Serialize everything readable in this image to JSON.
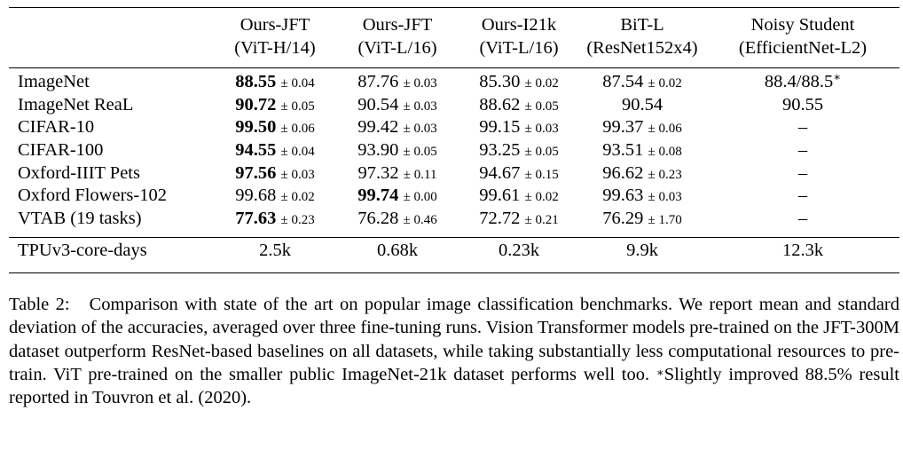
{
  "table": {
    "columns": [
      {
        "name": "Ours-JFT",
        "sub": "(ViT-H/14)"
      },
      {
        "name": "Ours-JFT",
        "sub": "(ViT-L/16)"
      },
      {
        "name": "Ours-I21k",
        "sub": "(ViT-L/16)"
      },
      {
        "name": "BiT-L",
        "sub": "(ResNet152x4)"
      },
      {
        "name": "Noisy Student",
        "sub": "(EfficientNet-L2)"
      }
    ],
    "rows": [
      {
        "label": "ImageNet",
        "cells": [
          {
            "v": "88.55",
            "pm": "± 0.04",
            "bold": true
          },
          {
            "v": "87.76",
            "pm": "± 0.03"
          },
          {
            "v": "85.30",
            "pm": "± 0.02"
          },
          {
            "v": "87.54",
            "pm": "± 0.02"
          },
          {
            "v": "88.4/88.5",
            "sup": "∗"
          }
        ]
      },
      {
        "label": "ImageNet ReaL",
        "cells": [
          {
            "v": "90.72",
            "pm": "± 0.05",
            "bold": true
          },
          {
            "v": "90.54",
            "pm": "± 0.03"
          },
          {
            "v": "88.62",
            "pm": "± 0.05"
          },
          {
            "v": "90.54"
          },
          {
            "v": "90.55"
          }
        ]
      },
      {
        "label": "CIFAR-10",
        "cells": [
          {
            "v": "99.50",
            "pm": "± 0.06",
            "bold": true
          },
          {
            "v": "99.42",
            "pm": "± 0.03"
          },
          {
            "v": "99.15",
            "pm": "± 0.03"
          },
          {
            "v": "99.37",
            "pm": "± 0.06"
          },
          {
            "v": "–"
          }
        ]
      },
      {
        "label": "CIFAR-100",
        "cells": [
          {
            "v": "94.55",
            "pm": "± 0.04",
            "bold": true
          },
          {
            "v": "93.90",
            "pm": "± 0.05"
          },
          {
            "v": "93.25",
            "pm": "± 0.05"
          },
          {
            "v": "93.51",
            "pm": "± 0.08"
          },
          {
            "v": "–"
          }
        ]
      },
      {
        "label": "Oxford-IIIT Pets",
        "cells": [
          {
            "v": "97.56",
            "pm": "± 0.03",
            "bold": true
          },
          {
            "v": "97.32",
            "pm": "± 0.11"
          },
          {
            "v": "94.67",
            "pm": "± 0.15"
          },
          {
            "v": "96.62",
            "pm": "± 0.23"
          },
          {
            "v": "–"
          }
        ]
      },
      {
        "label": "Oxford Flowers-102",
        "cells": [
          {
            "v": "99.68",
            "pm": "± 0.02"
          },
          {
            "v": "99.74",
            "pm": "± 0.00",
            "bold": true
          },
          {
            "v": "99.61",
            "pm": "± 0.02"
          },
          {
            "v": "99.63",
            "pm": "± 0.03"
          },
          {
            "v": "–"
          }
        ]
      },
      {
        "label": "VTAB (19 tasks)",
        "cells": [
          {
            "v": "77.63",
            "pm": "± 0.23",
            "bold": true
          },
          {
            "v": "76.28",
            "pm": "± 0.46"
          },
          {
            "v": "72.72",
            "pm": "± 0.21"
          },
          {
            "v": "76.29",
            "pm": "± 1.70"
          },
          {
            "v": "–"
          }
        ]
      }
    ],
    "footer": {
      "label": "TPUv3-core-days",
      "values": [
        "2.5k",
        "0.68k",
        "0.23k",
        "9.9k",
        "12.3k"
      ]
    }
  },
  "caption": {
    "label": "Table 2:",
    "text_before_star": "Comparison with state of the art on popular image classification benchmarks. We report mean and standard deviation of the accuracies, averaged over three fine-tuning runs. Vision Transformer models pre-trained on the JFT-300M dataset outperform ResNet-based baselines on all datasets, while taking substantially less computational resources to pre-train. ViT pre-trained on the smaller public ImageNet-21k dataset performs well too.",
    "star": "∗",
    "text_after_star": "Slightly improved 88.5% result reported in Touvron et al. (2020)."
  }
}
